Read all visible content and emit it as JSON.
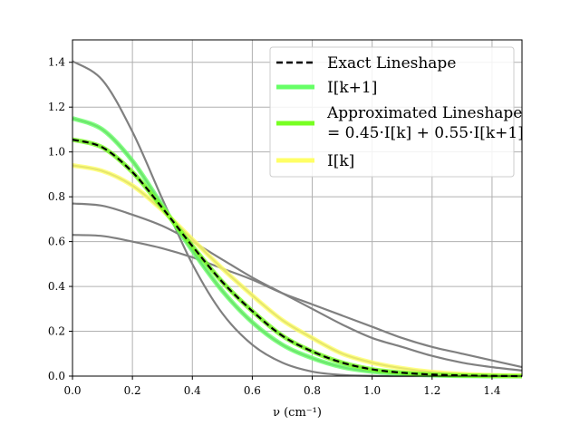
{
  "chart_data": {
    "type": "line",
    "title": "",
    "xlabel": "ν (cm⁻¹)",
    "ylabel": "",
    "xlim": [
      0.0,
      1.5
    ],
    "ylim": [
      0.0,
      1.5
    ],
    "x_ticks": [
      "0.0",
      "0.2",
      "0.4",
      "0.6",
      "0.8",
      "1.0",
      "1.2",
      "1.4"
    ],
    "y_ticks": [
      "0.0",
      "0.2",
      "0.4",
      "0.6",
      "0.8",
      "1.0",
      "1.2",
      "1.4"
    ],
    "grid": true,
    "legend_position": "top-right",
    "legend": [
      {
        "label": "Exact Lineshape",
        "style": "dashed",
        "color": "#000000"
      },
      {
        "label": "I[k+1]",
        "style": "solid",
        "color": "#66ff66"
      },
      {
        "label": "Approximated Lineshape",
        "label_line2": "= 0.45·I[k] + 0.55·I[k+1]",
        "style": "solid",
        "color": "#77ff22"
      },
      {
        "label": "I[k]",
        "style": "solid",
        "color": "#ffff66"
      }
    ],
    "series": [
      {
        "role": "background-gray",
        "color": "#808080",
        "peak": 1.405,
        "x": [
          0,
          0.1,
          0.2,
          0.3,
          0.4,
          0.5,
          0.6,
          0.7,
          0.8,
          0.9,
          1.0,
          1.1,
          1.2,
          1.3,
          1.4,
          1.5
        ],
        "y": [
          1.405,
          1.32,
          1.09,
          0.79,
          0.5,
          0.28,
          0.14,
          0.06,
          0.02,
          0.005,
          0.001,
          0,
          0,
          0,
          0,
          0
        ]
      },
      {
        "role": "background-gray",
        "color": "#808080",
        "peak": 1.15,
        "x": [
          0,
          0.1,
          0.2,
          0.3,
          0.4,
          0.5,
          0.6,
          0.7,
          0.8,
          0.9,
          1.0,
          1.1,
          1.2,
          1.3,
          1.4,
          1.5
        ],
        "y": [
          1.15,
          1.1,
          0.96,
          0.76,
          0.56,
          0.38,
          0.24,
          0.14,
          0.08,
          0.04,
          0.02,
          0.01,
          0.004,
          0.001,
          0,
          0
        ]
      },
      {
        "role": "background-gray",
        "color": "#808080",
        "peak": 1.055,
        "x": [
          0,
          0.1,
          0.2,
          0.3,
          0.4,
          0.5,
          0.6,
          0.7,
          0.8,
          0.9,
          1.0,
          1.1,
          1.2,
          1.3,
          1.4,
          1.5
        ],
        "y": [
          1.055,
          1.02,
          0.91,
          0.75,
          0.58,
          0.42,
          0.29,
          0.18,
          0.11,
          0.06,
          0.03,
          0.015,
          0.007,
          0.003,
          0.001,
          0
        ]
      },
      {
        "role": "background-gray",
        "color": "#808080",
        "peak": 0.94,
        "x": [
          0,
          0.1,
          0.2,
          0.3,
          0.4,
          0.5,
          0.6,
          0.7,
          0.8,
          0.9,
          1.0,
          1.1,
          1.2,
          1.3,
          1.4,
          1.5
        ],
        "y": [
          0.94,
          0.915,
          0.85,
          0.74,
          0.61,
          0.48,
          0.36,
          0.25,
          0.17,
          0.1,
          0.06,
          0.035,
          0.018,
          0.009,
          0.004,
          0.002
        ]
      },
      {
        "role": "background-gray",
        "color": "#808080",
        "peak": 0.77,
        "x": [
          0,
          0.1,
          0.2,
          0.3,
          0.4,
          0.5,
          0.6,
          0.7,
          0.8,
          0.9,
          1.0,
          1.1,
          1.2,
          1.3,
          1.4,
          1.5
        ],
        "y": [
          0.77,
          0.76,
          0.72,
          0.67,
          0.6,
          0.52,
          0.44,
          0.37,
          0.3,
          0.23,
          0.17,
          0.13,
          0.09,
          0.06,
          0.04,
          0.025
        ]
      },
      {
        "role": "background-gray",
        "color": "#808080",
        "peak": 0.63,
        "x": [
          0,
          0.1,
          0.2,
          0.3,
          0.4,
          0.5,
          0.6,
          0.7,
          0.8,
          0.9,
          1.0,
          1.1,
          1.2,
          1.3,
          1.4,
          1.5
        ],
        "y": [
          0.63,
          0.625,
          0.6,
          0.57,
          0.53,
          0.48,
          0.43,
          0.37,
          0.32,
          0.27,
          0.22,
          0.17,
          0.13,
          0.1,
          0.07,
          0.04
        ]
      },
      {
        "name": "I[k+1]",
        "color": "#66ff66",
        "x": [
          0,
          0.1,
          0.2,
          0.3,
          0.4,
          0.5,
          0.6,
          0.7,
          0.8,
          0.9,
          1.0,
          1.1,
          1.2,
          1.3,
          1.4,
          1.5
        ],
        "y": [
          1.15,
          1.1,
          0.96,
          0.76,
          0.56,
          0.38,
          0.24,
          0.14,
          0.08,
          0.04,
          0.02,
          0.01,
          0.004,
          0.001,
          0,
          0
        ]
      },
      {
        "name": "I[k]",
        "color": "#ffff66",
        "x": [
          0,
          0.1,
          0.2,
          0.3,
          0.4,
          0.5,
          0.6,
          0.7,
          0.8,
          0.9,
          1.0,
          1.1,
          1.2,
          1.3,
          1.4,
          1.5
        ],
        "y": [
          0.94,
          0.915,
          0.85,
          0.74,
          0.61,
          0.48,
          0.36,
          0.25,
          0.17,
          0.1,
          0.06,
          0.035,
          0.018,
          0.009,
          0.004,
          0.002
        ]
      },
      {
        "name": "Approximated Lineshape",
        "color": "#77ff22",
        "x": [
          0,
          0.1,
          0.2,
          0.3,
          0.4,
          0.5,
          0.6,
          0.7,
          0.8,
          0.9,
          1.0,
          1.1,
          1.2,
          1.3,
          1.4,
          1.5
        ],
        "y": [
          1.055,
          1.02,
          0.91,
          0.75,
          0.58,
          0.42,
          0.29,
          0.18,
          0.11,
          0.06,
          0.03,
          0.015,
          0.007,
          0.003,
          0.001,
          0
        ]
      },
      {
        "name": "Exact Lineshape",
        "color": "#000000",
        "dashed": true,
        "x": [
          0,
          0.1,
          0.2,
          0.3,
          0.4,
          0.5,
          0.6,
          0.7,
          0.8,
          0.9,
          1.0,
          1.1,
          1.2,
          1.3,
          1.4,
          1.5
        ],
        "y": [
          1.055,
          1.02,
          0.91,
          0.75,
          0.58,
          0.42,
          0.29,
          0.18,
          0.11,
          0.06,
          0.03,
          0.015,
          0.007,
          0.003,
          0.001,
          0
        ]
      }
    ]
  }
}
